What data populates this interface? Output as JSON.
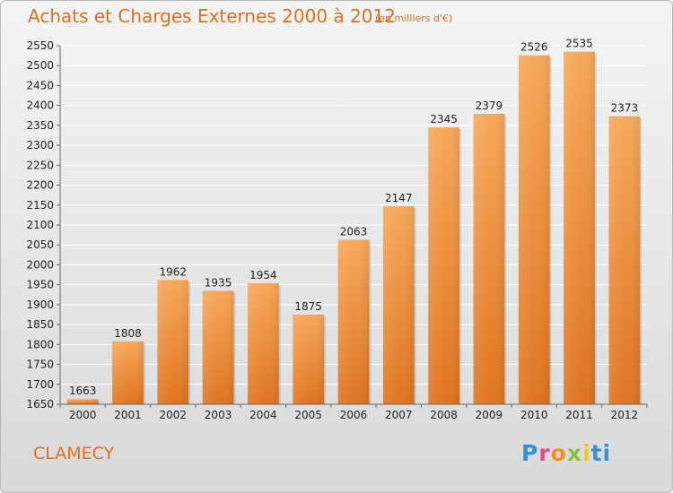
{
  "header": {
    "title": "Achats et Charges Externes 2000 à 2012",
    "unit_note": "(en milliers d'€)"
  },
  "footer": {
    "city": "CLAMECY",
    "logo": [
      "P",
      "r",
      "o",
      "x",
      "i",
      "ti"
    ]
  },
  "colors": {
    "accent": "#e06f1e",
    "bar_top": "#f7a85a",
    "bar_bottom": "#e07a22",
    "grid": "#ffffff"
  },
  "chart_data": {
    "type": "bar",
    "categories": [
      "2000",
      "2001",
      "2002",
      "2003",
      "2004",
      "2005",
      "2006",
      "2007",
      "2008",
      "2009",
      "2010",
      "2011",
      "2012"
    ],
    "values": [
      1663,
      1808,
      1962,
      1935,
      1954,
      1875,
      2063,
      2147,
      2345,
      2379,
      2526,
      2535,
      2373
    ],
    "title": "Achats et Charges Externes 2000 à 2012",
    "xlabel": "",
    "ylabel": "",
    "ylim": [
      1650,
      2550
    ],
    "ytick_step": 50,
    "grid": true
  }
}
